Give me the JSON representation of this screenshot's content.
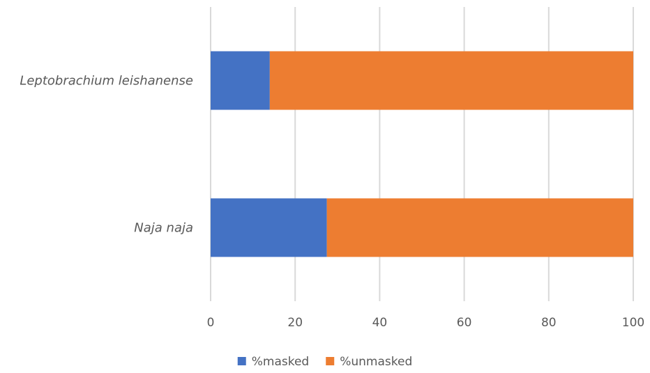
{
  "chart_data": {
    "type": "bar",
    "orientation": "horizontal",
    "stacked": true,
    "categories": [
      "Leptobrachium leishanense",
      "Naja naja"
    ],
    "series": [
      {
        "name": "%masked",
        "color": "#4472c4",
        "values": [
          14,
          27.5
        ]
      },
      {
        "name": "%unmasked",
        "color": "#ed7d31",
        "values": [
          86,
          72.5
        ]
      }
    ],
    "x_ticks": [
      "0",
      "20",
      "40",
      "60",
      "80",
      "100"
    ],
    "xlim": [
      0,
      100
    ],
    "grid": true,
    "grid_color": "#d9d9d9",
    "legend_position": "bottom",
    "category_label_style": "italic",
    "title": "",
    "xlabel": "",
    "ylabel": ""
  }
}
